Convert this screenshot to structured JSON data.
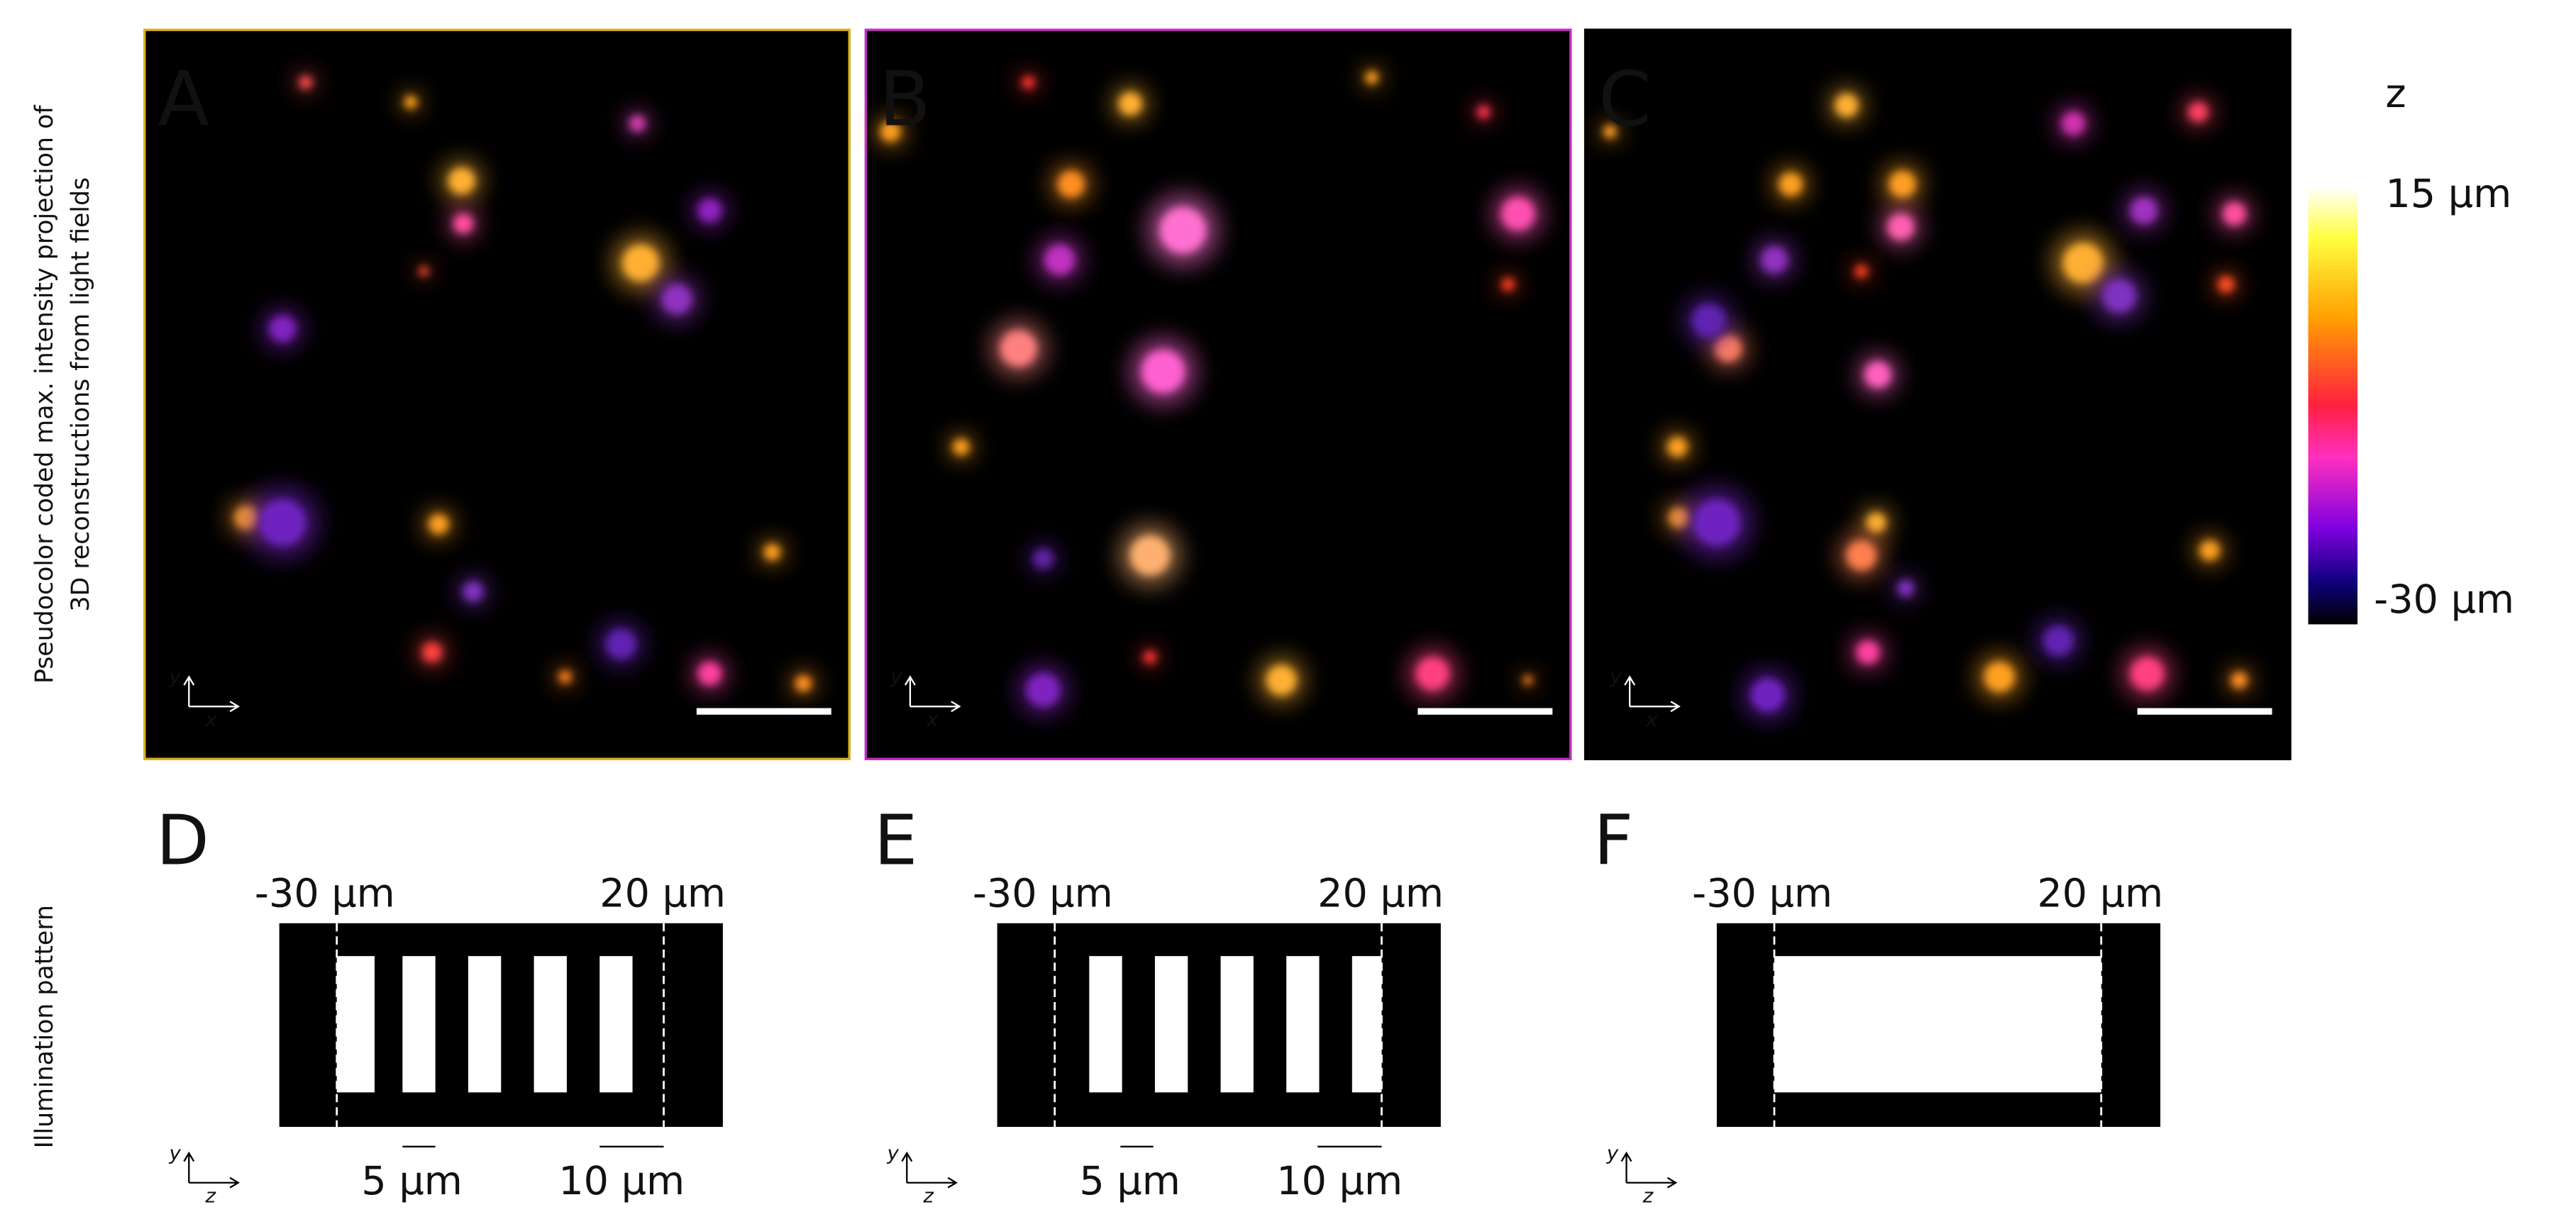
{
  "row_labels": {
    "top": [
      "Pseudocolor coded max. intensity projection of",
      "3D reconstructions from light fields"
    ],
    "bottom": "Illumination pattern"
  },
  "panels": [
    {
      "label": "A"
    },
    {
      "label": "B"
    },
    {
      "label": "C"
    }
  ],
  "colorbar": {
    "title": "z",
    "max_label": "15 µm",
    "min_label": "-30 µm"
  },
  "axes": {
    "top": {
      "y": "y",
      "x": "x"
    },
    "bottom": {
      "y": "y",
      "z": "z"
    }
  },
  "patterns": [
    {
      "label": "D",
      "left": "-30 µm",
      "right": "20 µm",
      "scale_small": "5 µm",
      "scale_large": "10 µm"
    },
    {
      "label": "E",
      "left": "-30 µm",
      "right": "20 µm",
      "scale_small": "5 µm",
      "scale_large": "10 µm"
    },
    {
      "label": "F",
      "left": "-30 µm",
      "right": "20 µm"
    }
  ]
}
